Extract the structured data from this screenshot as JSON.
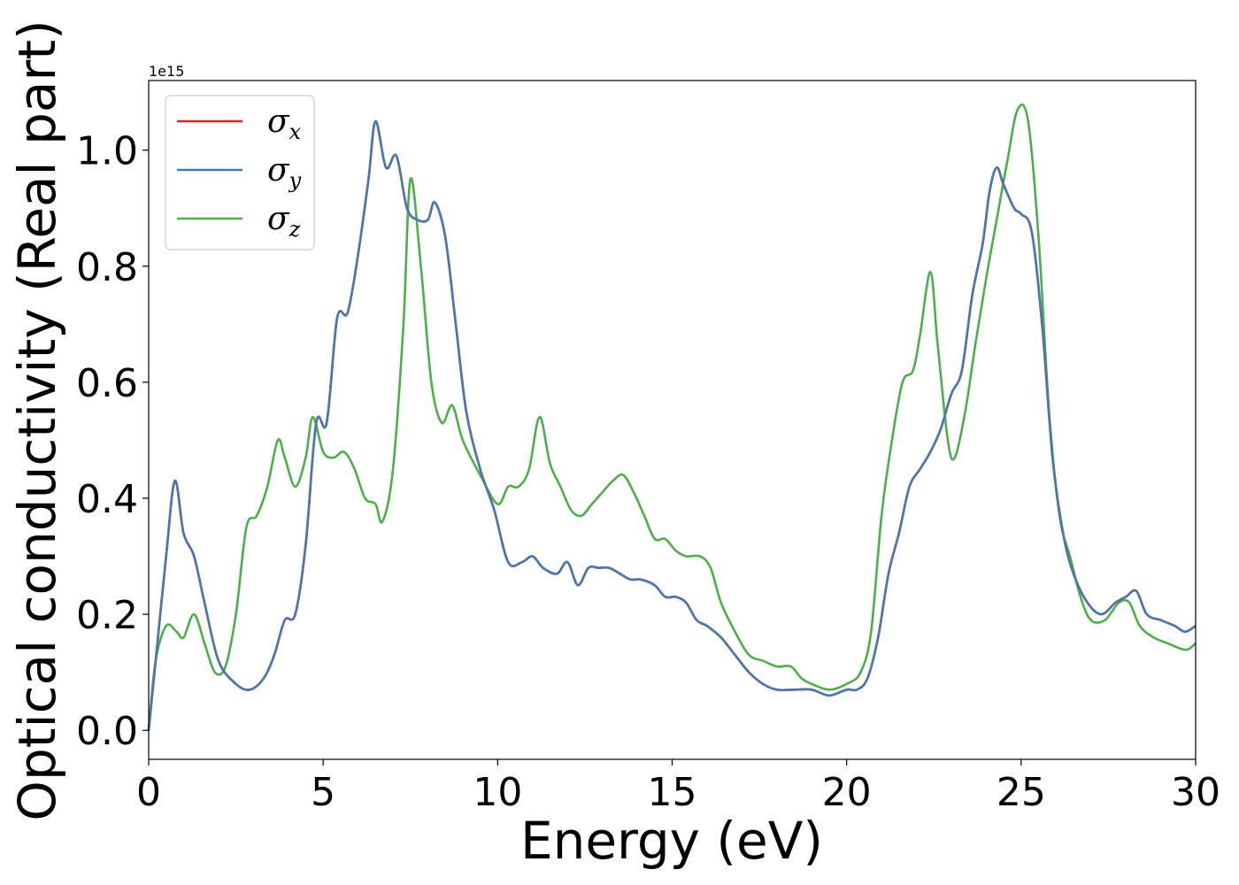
{
  "chart_data": {
    "type": "line",
    "xlabel": "Energy (eV)",
    "ylabel": "Optical conductivity (Real part)",
    "y_offset_label": "1e15",
    "xlim": [
      0,
      30
    ],
    "ylim": [
      -0.05,
      1.12
    ],
    "xticks": [
      0,
      5,
      10,
      15,
      20,
      25,
      30
    ],
    "xtick_labels": [
      "0",
      "5",
      "10",
      "15",
      "20",
      "25",
      "30"
    ],
    "yticks": [
      0.0,
      0.2,
      0.4,
      0.6,
      0.8,
      1.0
    ],
    "ytick_labels": [
      "0.0",
      "0.2",
      "0.4",
      "0.6",
      "0.8",
      "1.0"
    ],
    "legend_position": "top-left",
    "grid": false,
    "series": [
      {
        "name": "σx",
        "base": "σ",
        "sub": "x",
        "color": "#d62728",
        "x": [
          0,
          0.2,
          0.5,
          0.75,
          1.0,
          1.3,
          1.6,
          2.0,
          2.5,
          2.9,
          3.3,
          3.6,
          3.9,
          4.2,
          4.5,
          4.8,
          5.1,
          5.4,
          5.7,
          6.0,
          6.3,
          6.5,
          6.8,
          7.1,
          7.4,
          7.7,
          8.0,
          8.2,
          8.5,
          8.8,
          9.1,
          9.5,
          9.9,
          10.3,
          10.7,
          11.0,
          11.3,
          11.7,
          12.0,
          12.3,
          12.6,
          12.9,
          13.2,
          13.5,
          13.8,
          14.1,
          14.5,
          14.8,
          15.1,
          15.4,
          15.7,
          16.0,
          16.4,
          16.8,
          17.2,
          17.6,
          18.0,
          18.5,
          19.0,
          19.5,
          20.0,
          20.3,
          20.6,
          20.9,
          21.2,
          21.5,
          21.8,
          22.1,
          22.4,
          22.7,
          23.0,
          23.3,
          23.6,
          23.9,
          24.1,
          24.3,
          24.5,
          24.8,
          25.0,
          25.3,
          25.6,
          25.9,
          26.2,
          26.5,
          26.9,
          27.3,
          27.7,
          28.0,
          28.3,
          28.6,
          29.0,
          29.4,
          29.7,
          30.0
        ],
        "y": [
          0.0,
          0.12,
          0.3,
          0.43,
          0.34,
          0.3,
          0.22,
          0.12,
          0.08,
          0.07,
          0.09,
          0.13,
          0.19,
          0.2,
          0.32,
          0.53,
          0.53,
          0.71,
          0.72,
          0.82,
          0.95,
          1.05,
          0.97,
          0.99,
          0.9,
          0.88,
          0.88,
          0.91,
          0.85,
          0.7,
          0.55,
          0.45,
          0.38,
          0.29,
          0.29,
          0.3,
          0.28,
          0.27,
          0.29,
          0.25,
          0.28,
          0.28,
          0.28,
          0.27,
          0.26,
          0.26,
          0.25,
          0.23,
          0.23,
          0.22,
          0.19,
          0.18,
          0.16,
          0.13,
          0.1,
          0.08,
          0.07,
          0.07,
          0.07,
          0.06,
          0.07,
          0.07,
          0.09,
          0.16,
          0.27,
          0.34,
          0.42,
          0.45,
          0.48,
          0.52,
          0.58,
          0.62,
          0.75,
          0.84,
          0.93,
          0.97,
          0.94,
          0.9,
          0.89,
          0.86,
          0.7,
          0.47,
          0.34,
          0.27,
          0.22,
          0.2,
          0.22,
          0.23,
          0.24,
          0.2,
          0.19,
          0.18,
          0.17,
          0.18
        ]
      },
      {
        "name": "σy",
        "base": "σ",
        "sub": "y",
        "color": "#4878b0",
        "x": [
          0,
          0.2,
          0.5,
          0.75,
          1.0,
          1.3,
          1.6,
          2.0,
          2.5,
          2.9,
          3.3,
          3.6,
          3.9,
          4.2,
          4.5,
          4.8,
          5.1,
          5.4,
          5.7,
          6.0,
          6.3,
          6.5,
          6.8,
          7.1,
          7.4,
          7.7,
          8.0,
          8.2,
          8.5,
          8.8,
          9.1,
          9.5,
          9.9,
          10.3,
          10.7,
          11.0,
          11.3,
          11.7,
          12.0,
          12.3,
          12.6,
          12.9,
          13.2,
          13.5,
          13.8,
          14.1,
          14.5,
          14.8,
          15.1,
          15.4,
          15.7,
          16.0,
          16.4,
          16.8,
          17.2,
          17.6,
          18.0,
          18.5,
          19.0,
          19.5,
          20.0,
          20.3,
          20.6,
          20.9,
          21.2,
          21.5,
          21.8,
          22.1,
          22.4,
          22.7,
          23.0,
          23.3,
          23.6,
          23.9,
          24.1,
          24.3,
          24.5,
          24.8,
          25.0,
          25.3,
          25.6,
          25.9,
          26.2,
          26.5,
          26.9,
          27.3,
          27.7,
          28.0,
          28.3,
          28.6,
          29.0,
          29.4,
          29.7,
          30.0
        ],
        "y": [
          0.0,
          0.12,
          0.3,
          0.43,
          0.34,
          0.3,
          0.22,
          0.12,
          0.08,
          0.07,
          0.09,
          0.13,
          0.19,
          0.2,
          0.32,
          0.53,
          0.53,
          0.71,
          0.72,
          0.82,
          0.95,
          1.05,
          0.97,
          0.99,
          0.9,
          0.88,
          0.88,
          0.91,
          0.85,
          0.7,
          0.55,
          0.45,
          0.38,
          0.29,
          0.29,
          0.3,
          0.28,
          0.27,
          0.29,
          0.25,
          0.28,
          0.28,
          0.28,
          0.27,
          0.26,
          0.26,
          0.25,
          0.23,
          0.23,
          0.22,
          0.19,
          0.18,
          0.16,
          0.13,
          0.1,
          0.08,
          0.07,
          0.07,
          0.07,
          0.06,
          0.07,
          0.07,
          0.09,
          0.16,
          0.27,
          0.34,
          0.42,
          0.45,
          0.48,
          0.52,
          0.58,
          0.62,
          0.75,
          0.84,
          0.93,
          0.97,
          0.94,
          0.9,
          0.89,
          0.86,
          0.7,
          0.47,
          0.34,
          0.27,
          0.22,
          0.2,
          0.22,
          0.23,
          0.24,
          0.2,
          0.19,
          0.18,
          0.17,
          0.18
        ]
      },
      {
        "name": "σz",
        "base": "σ",
        "sub": "z",
        "color": "#4daf4a",
        "x": [
          0,
          0.2,
          0.5,
          0.8,
          1.0,
          1.3,
          1.6,
          1.9,
          2.2,
          2.5,
          2.8,
          3.1,
          3.4,
          3.7,
          3.9,
          4.2,
          4.5,
          4.7,
          5.0,
          5.3,
          5.6,
          5.9,
          6.2,
          6.5,
          6.7,
          7.0,
          7.3,
          7.5,
          7.8,
          8.1,
          8.4,
          8.7,
          9.0,
          9.5,
          10.0,
          10.3,
          10.6,
          10.9,
          11.2,
          11.5,
          11.8,
          12.1,
          12.4,
          12.7,
          13.0,
          13.3,
          13.6,
          13.9,
          14.2,
          14.5,
          14.8,
          15.1,
          15.4,
          15.8,
          16.1,
          16.4,
          16.8,
          17.2,
          17.6,
          18.0,
          18.4,
          18.7,
          19.0,
          19.5,
          20.0,
          20.4,
          20.7,
          21.0,
          21.3,
          21.6,
          21.9,
          22.1,
          22.4,
          22.6,
          22.9,
          23.1,
          23.4,
          23.7,
          24.0,
          24.3,
          24.6,
          24.9,
          25.2,
          25.5,
          25.8,
          26.1,
          26.4,
          26.7,
          27.0,
          27.4,
          27.8,
          28.1,
          28.4,
          28.8,
          29.2,
          29.6,
          29.8,
          30.0
        ],
        "y": [
          0.0,
          0.12,
          0.18,
          0.17,
          0.16,
          0.2,
          0.15,
          0.1,
          0.11,
          0.2,
          0.35,
          0.37,
          0.42,
          0.5,
          0.47,
          0.42,
          0.47,
          0.54,
          0.48,
          0.47,
          0.48,
          0.45,
          0.4,
          0.39,
          0.36,
          0.45,
          0.7,
          0.95,
          0.8,
          0.6,
          0.53,
          0.56,
          0.5,
          0.44,
          0.39,
          0.42,
          0.42,
          0.45,
          0.54,
          0.46,
          0.42,
          0.38,
          0.37,
          0.39,
          0.41,
          0.43,
          0.44,
          0.41,
          0.37,
          0.33,
          0.33,
          0.31,
          0.3,
          0.3,
          0.28,
          0.22,
          0.17,
          0.13,
          0.12,
          0.11,
          0.11,
          0.09,
          0.08,
          0.07,
          0.08,
          0.1,
          0.17,
          0.37,
          0.5,
          0.6,
          0.62,
          0.68,
          0.79,
          0.67,
          0.5,
          0.47,
          0.55,
          0.67,
          0.78,
          0.88,
          0.98,
          1.07,
          1.05,
          0.85,
          0.55,
          0.37,
          0.3,
          0.23,
          0.19,
          0.19,
          0.22,
          0.22,
          0.18,
          0.16,
          0.15,
          0.14,
          0.14,
          0.15
        ]
      }
    ]
  }
}
